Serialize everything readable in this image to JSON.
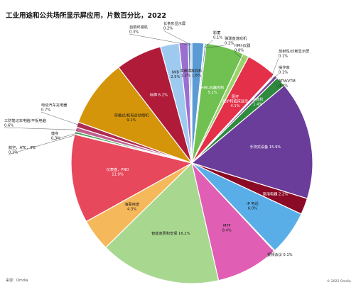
{
  "chart_data": {
    "type": "pie",
    "title": "工业用途和公共场所显示屏应用，片数百分比，2022",
    "source": "来源：Omdia",
    "copyright": "© 2022 Omdia",
    "slices": [
      {
        "name": "游戏机",
        "value": 1.6,
        "color": "#5b9bd5",
        "label_text": "游戏机\n1.6%"
      },
      {
        "name": "影蓄",
        "value": 0.1,
        "color": "#2e75b6",
        "label_text": "影蓄\n0.1%"
      },
      {
        "name": "弹球盘游戏机",
        "value": 0.2,
        "color": "#4472c4",
        "label_text": "弹球盘游戏机\n0.2%"
      },
      {
        "name": "HMI-机器控制",
        "value": 5.1,
        "color": "#70c152",
        "label_text": "HMI-机器控制\n5.1%"
      },
      {
        "name": "HMI-仪器",
        "value": 0.8,
        "color": "#9cd46c",
        "label_text": "HMI-仪器\n0.8%"
      },
      {
        "name": "医疗-监护和临床显示",
        "value": 4.1,
        "color": "#e5304a",
        "label_text": "医疗\n监护和临床显示\n4.1%"
      },
      {
        "name": "放射性/诊断显示屏",
        "value": 0.1,
        "color": "#b4263e",
        "label_text": "放射性/诊断显示屏\n0.1%"
      },
      {
        "name": "操作家",
        "value": 0.1,
        "color": "#c94f7c",
        "label_text": "操作家\n0.1%"
      },
      {
        "name": "ATM/VTM",
        "value": 0.4,
        "color": "#7b3f99",
        "label_text": "ATM/VTM\n0.4%"
      },
      {
        "name": "收款机",
        "value": 1.4,
        "color": "#2e8b3e",
        "label_text": "收款机\n1.4%"
      },
      {
        "name": "手持式设备",
        "value": 15.9,
        "color": "#6a3d9a",
        "label_text": "手持式设备 15.9%"
      },
      {
        "name": "家用电器",
        "value": 2.2,
        "color": "#8b0a25",
        "label_text": "家用电器 2.2%"
      },
      {
        "name": "IP 电话",
        "value": 6.0,
        "color": "#5aaee8",
        "label_text": "IP 电话\n6.0%"
      },
      {
        "name": "视频会议",
        "value": 0.1,
        "color": "#e87fb0",
        "label_text": "视频会议 0.1%"
      },
      {
        "name": "MFP",
        "value": 8.4,
        "color": "#e05fb5",
        "label_text": "MFP\n8.4%"
      },
      {
        "name": "智能家居和安保",
        "value": 16.2,
        "color": "#a8d890",
        "label_text": "智能家居和安保 16.2%"
      },
      {
        "name": "海事用途",
        "value": 4.3,
        "color": "#f5b85a",
        "label_text": "海事用途\n4.3%"
      },
      {
        "name": "仪表盘，PND",
        "value": 11.9,
        "color": "#e8485c",
        "label_text": "仪表盘，PND\n11.9%"
      },
      {
        "name": "航空，ATC，IFE",
        "value": 0.1,
        "color": "#7030a0",
        "label_text": "航空，ATC，IFE\n0.1%"
      },
      {
        "name": "健身",
        "value": 0.3,
        "color": "#3a9e4a",
        "label_text": "健身\n0.3%"
      },
      {
        "name": "三防笔记本电脑/平板电脑",
        "value": 0.6,
        "color": "#c06090",
        "label_text": "三防笔记本电脑/平板电脑\n0.6%"
      },
      {
        "name": "电动汽车充电器",
        "value": 0.7,
        "color": "#b02b52",
        "label_text": "电动汽车充电器\n0.7%"
      },
      {
        "name": "穿戴式/机电运动相机",
        "value": 9.1,
        "color": "#d4950a",
        "label_text": "穿戴式/机电运动相机\n9.1%"
      },
      {
        "name": "标牌",
        "value": 6.2,
        "color": "#b01b3a",
        "label_text": "标牌 6.2%"
      },
      {
        "name": "IWB",
        "value": 2.5,
        "color": "#9fcaf0",
        "label_text": "IWB\n2.5%"
      },
      {
        "name": "厚嵌墙",
        "value": 1.2,
        "color": "#9b6fd0",
        "label_text": "厚嵌墙\n1.2%"
      },
      {
        "name": "自助终端机",
        "value": 0.3,
        "color": "#4f81bd",
        "label_text": "自助终端机\n0.3%"
      },
      {
        "name": "长条形显示屏",
        "value": 0.2,
        "color": "#8fb4e0",
        "label_text": "长条形显示屏\n0.2%"
      }
    ]
  }
}
